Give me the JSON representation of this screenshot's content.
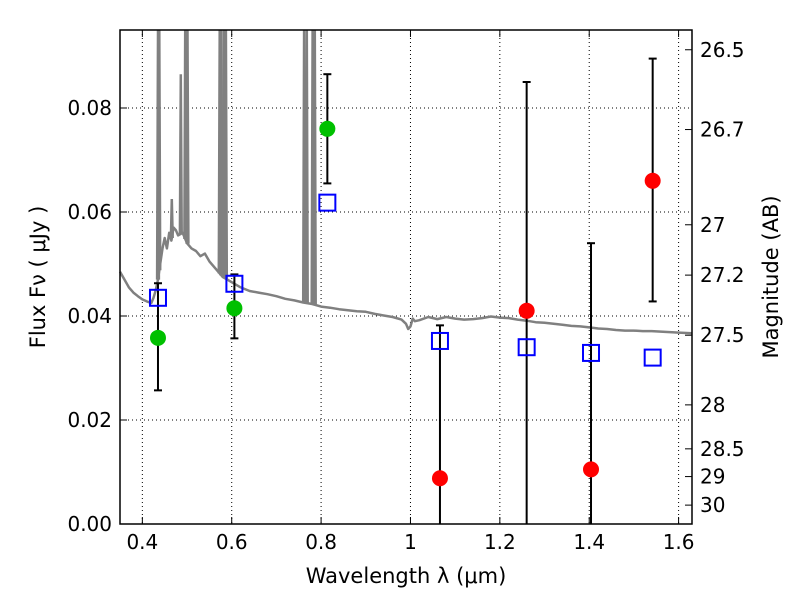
{
  "chart_data": {
    "type": "scatter",
    "xlabel": "Wavelength  λ (μm)",
    "ylabel_left": "Flux  Fν  ( μJy )",
    "ylabel_right": "Magnitude (AB)",
    "xlim": [
      0.35,
      1.63
    ],
    "ylim": [
      0.0,
      0.095
    ],
    "x_ticks": [
      0.4,
      0.6,
      0.8,
      1.0,
      1.2,
      1.4,
      1.6
    ],
    "x_tick_labels": [
      "0.4",
      "0.6",
      "0.8",
      "1",
      "1.2",
      "1.4",
      "1.6"
    ],
    "y_ticks": [
      0.0,
      0.02,
      0.04,
      0.06,
      0.08
    ],
    "y_tick_labels": [
      "0.00",
      "0.02",
      "0.04",
      "0.06",
      "0.08"
    ],
    "right_ticks": [
      {
        "label": "26.5",
        "mag": 26.5
      },
      {
        "label": "26.7",
        "mag": 26.7
      },
      {
        "label": "27",
        "mag": 27.0
      },
      {
        "label": "27.2",
        "mag": 27.2
      },
      {
        "label": "27.5",
        "mag": 27.5
      },
      {
        "label": "28",
        "mag": 28.0
      },
      {
        "label": "28.5",
        "mag": 28.5
      },
      {
        "label": "29",
        "mag": 29.0
      },
      {
        "label": "30",
        "mag": 30.0
      }
    ],
    "grid": true,
    "series": [
      {
        "name": "model_spectrum",
        "kind": "line",
        "color": "#808080",
        "points": [
          [
            0.35,
            0.0485
          ],
          [
            0.36,
            0.047
          ],
          [
            0.37,
            0.0455
          ],
          [
            0.38,
            0.0445
          ],
          [
            0.39,
            0.0438
          ],
          [
            0.4,
            0.0432
          ],
          [
            0.41,
            0.0428
          ],
          [
            0.42,
            0.0425
          ],
          [
            0.425,
            0.0435
          ],
          [
            0.43,
            0.045
          ],
          [
            0.435,
            0.047
          ],
          [
            0.44,
            0.05
          ],
          [
            0.445,
            0.053
          ],
          [
            0.45,
            0.055
          ],
          [
            0.455,
            0.053
          ],
          [
            0.46,
            0.056
          ],
          [
            0.465,
            0.0545
          ],
          [
            0.47,
            0.057
          ],
          [
            0.475,
            0.0565
          ],
          [
            0.48,
            0.0555
          ],
          [
            0.49,
            0.056
          ],
          [
            0.5,
            0.054
          ],
          [
            0.51,
            0.053
          ],
          [
            0.52,
            0.0525
          ],
          [
            0.53,
            0.0515
          ],
          [
            0.54,
            0.052
          ],
          [
            0.55,
            0.0505
          ],
          [
            0.56,
            0.0495
          ],
          [
            0.57,
            0.0485
          ],
          [
            0.58,
            0.0475
          ],
          [
            0.59,
            0.047
          ],
          [
            0.6,
            0.0465
          ],
          [
            0.62,
            0.0455
          ],
          [
            0.64,
            0.0448
          ],
          [
            0.66,
            0.0445
          ],
          [
            0.68,
            0.0442
          ],
          [
            0.7,
            0.0438
          ],
          [
            0.72,
            0.0433
          ],
          [
            0.74,
            0.043
          ],
          [
            0.76,
            0.0426
          ],
          [
            0.78,
            0.0423
          ],
          [
            0.8,
            0.0418
          ],
          [
            0.82,
            0.0416
          ],
          [
            0.84,
            0.0413
          ],
          [
            0.86,
            0.0411
          ],
          [
            0.88,
            0.0409
          ],
          [
            0.9,
            0.0408
          ],
          [
            0.92,
            0.0404
          ],
          [
            0.94,
            0.0401
          ],
          [
            0.96,
            0.0398
          ],
          [
            0.98,
            0.0393
          ],
          [
            0.99,
            0.0385
          ],
          [
            0.995,
            0.0375
          ],
          [
            1.0,
            0.038
          ],
          [
            1.005,
            0.0395
          ],
          [
            1.01,
            0.039
          ],
          [
            1.02,
            0.0392
          ],
          [
            1.04,
            0.0398
          ],
          [
            1.06,
            0.0394
          ],
          [
            1.08,
            0.0398
          ],
          [
            1.1,
            0.0395
          ],
          [
            1.12,
            0.0393
          ],
          [
            1.14,
            0.0394
          ],
          [
            1.16,
            0.0396
          ],
          [
            1.18,
            0.0399
          ],
          [
            1.2,
            0.0397
          ],
          [
            1.22,
            0.0396
          ],
          [
            1.24,
            0.0393
          ],
          [
            1.26,
            0.0391
          ],
          [
            1.28,
            0.0388
          ],
          [
            1.3,
            0.0387
          ],
          [
            1.32,
            0.0385
          ],
          [
            1.34,
            0.0383
          ],
          [
            1.36,
            0.0381
          ],
          [
            1.38,
            0.038
          ],
          [
            1.4,
            0.0378
          ],
          [
            1.42,
            0.0376
          ],
          [
            1.44,
            0.0375
          ],
          [
            1.46,
            0.0373
          ],
          [
            1.48,
            0.0372
          ],
          [
            1.5,
            0.0372
          ],
          [
            1.52,
            0.0371
          ],
          [
            1.54,
            0.0371
          ],
          [
            1.56,
            0.037
          ],
          [
            1.58,
            0.0369
          ],
          [
            1.6,
            0.0368
          ],
          [
            1.63,
            0.0367
          ]
        ],
        "emission_lines": [
          {
            "x": 0.435,
            "peak": 0.095
          },
          {
            "x": 0.438,
            "peak": 0.095
          },
          {
            "x": 0.466,
            "peak": 0.0625
          },
          {
            "x": 0.486,
            "peak": 0.0865
          },
          {
            "x": 0.496,
            "peak": 0.095
          },
          {
            "x": 0.501,
            "peak": 0.095
          },
          {
            "x": 0.573,
            "peak": 0.095
          },
          {
            "x": 0.577,
            "peak": 0.095
          },
          {
            "x": 0.583,
            "peak": 0.095
          },
          {
            "x": 0.587,
            "peak": 0.095
          },
          {
            "x": 0.762,
            "peak": 0.095
          },
          {
            "x": 0.768,
            "peak": 0.095
          },
          {
            "x": 0.781,
            "peak": 0.095
          },
          {
            "x": 0.786,
            "peak": 0.095
          }
        ]
      },
      {
        "name": "observed_detections",
        "kind": "points",
        "color": "#00c000",
        "points": [
          {
            "x": 0.435,
            "y": 0.0358,
            "err_low": 0.0257,
            "err_high": 0.0463
          },
          {
            "x": 0.606,
            "y": 0.0415,
            "err_low": 0.0357,
            "err_high": 0.048
          },
          {
            "x": 0.814,
            "y": 0.076,
            "err_low": 0.0655,
            "err_high": 0.0865
          }
        ]
      },
      {
        "name": "observed_upper_limits",
        "kind": "points",
        "color": "#ff0000",
        "points": [
          {
            "x": 1.066,
            "y": 0.0088,
            "err_low": 0.0,
            "err_high": 0.0382
          },
          {
            "x": 1.26,
            "y": 0.041,
            "err_low": 0.0,
            "err_high": 0.085
          },
          {
            "x": 1.404,
            "y": 0.0105,
            "err_low": 0.0,
            "err_high": 0.054
          },
          {
            "x": 1.542,
            "y": 0.066,
            "err_low": 0.0428,
            "err_high": 0.0895
          }
        ]
      },
      {
        "name": "model_synthetic_photometry",
        "kind": "open_squares",
        "color": "#0000ff",
        "points": [
          {
            "x": 0.435,
            "y": 0.0435
          },
          {
            "x": 0.606,
            "y": 0.0462
          },
          {
            "x": 0.814,
            "y": 0.0618
          },
          {
            "x": 1.066,
            "y": 0.0352
          },
          {
            "x": 1.26,
            "y": 0.034
          },
          {
            "x": 1.404,
            "y": 0.0329
          },
          {
            "x": 1.542,
            "y": 0.032
          }
        ]
      }
    ]
  }
}
